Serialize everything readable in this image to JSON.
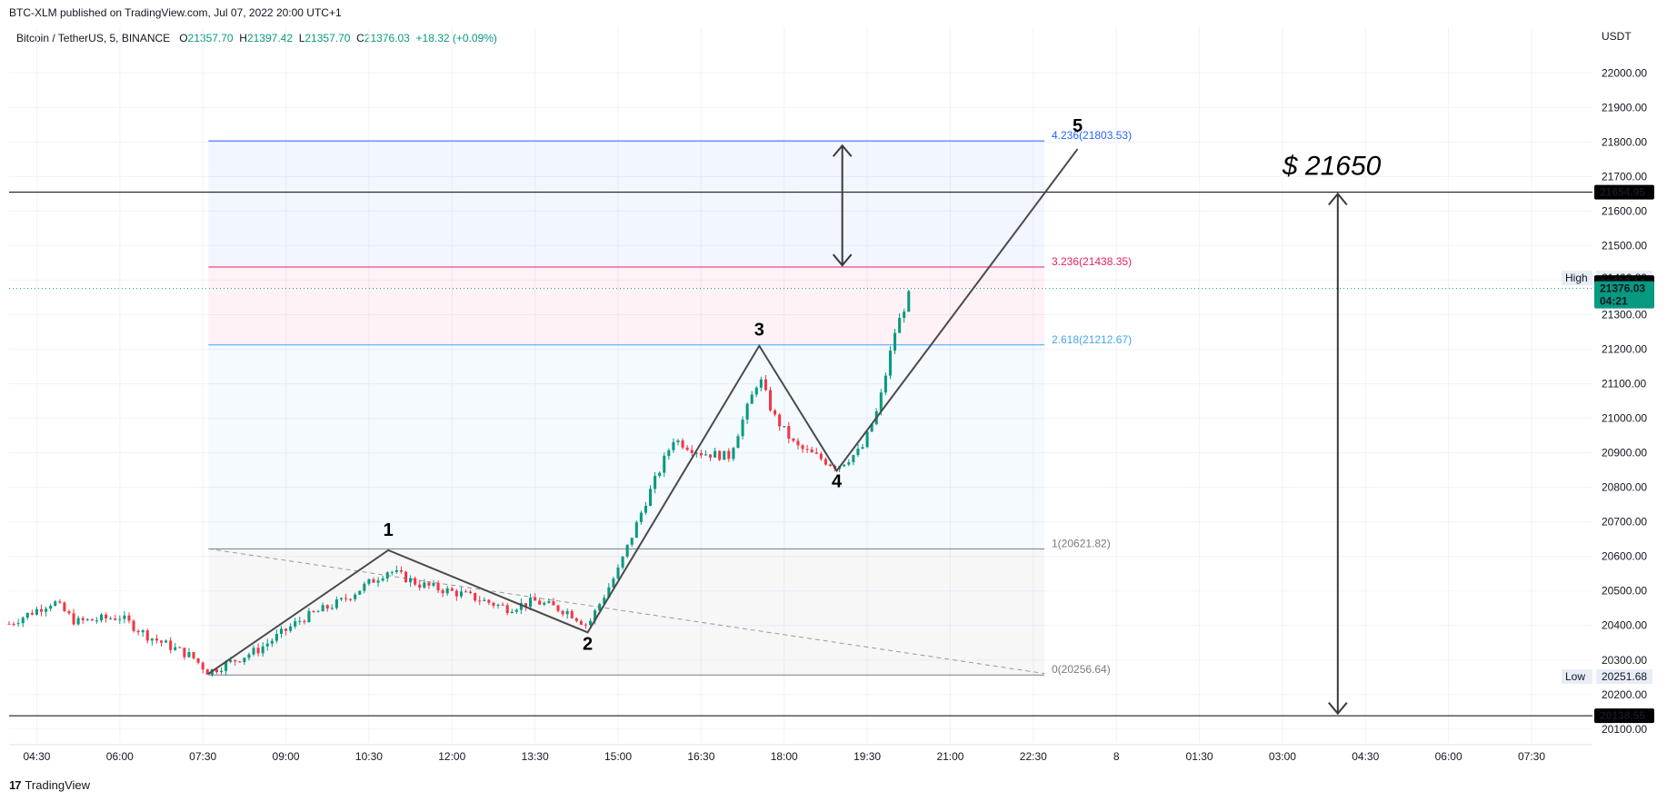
{
  "header": {
    "publish_line": "BTC-XLM published on TradingView.com, Jul 07, 2022 20:00 UTC+1",
    "symbol": "Bitcoin / TetherUS, 5, BINANCE",
    "ohlc": {
      "o_label": "O",
      "o": "21357.70",
      "h_label": "H",
      "h": "21397.42",
      "l_label": "L",
      "l": "21357.70",
      "c_label": "C",
      "c": "21376.03",
      "change": "+18.32 (+0.09%)"
    }
  },
  "footer": {
    "brand": "TradingView",
    "logo_glyph": "17"
  },
  "chart_data": {
    "type": "candlestick",
    "price_axis": {
      "unit": "USDT",
      "ticks": [
        22000,
        21900,
        21800,
        21700,
        21600,
        21500,
        21400,
        21300,
        21200,
        21100,
        21000,
        20900,
        20800,
        20700,
        20600,
        20500,
        20400,
        20300,
        20200,
        20100
      ],
      "tick_labels": [
        "22000.00",
        "21900.00",
        "21800.00",
        "21700.00",
        "21600.00",
        "21500.00",
        "21400.00",
        "21300.00",
        "21200.00",
        "21100.00",
        "21000.00",
        "20900.00",
        "20800.00",
        "20700.00",
        "20600.00",
        "20500.00",
        "20400.00",
        "20300.00",
        "20200.00",
        "20100.00"
      ],
      "range": [
        20060,
        22080
      ]
    },
    "time_axis": {
      "labels": [
        "04:30",
        "06:00",
        "07:30",
        "09:00",
        "10:30",
        "12:00",
        "13:30",
        "15:00",
        "16:30",
        "18:00",
        "19:30",
        "21:00",
        "22:30",
        "8",
        "01:30",
        "03:00",
        "04:30",
        "06:00",
        "07:30"
      ],
      "label_hours": [
        4.5,
        6,
        7.5,
        9,
        10.5,
        12,
        13.5,
        15,
        16.5,
        18,
        19.5,
        21,
        22.5,
        24,
        25.5,
        27,
        28.5,
        30,
        31.5
      ],
      "range_hours": [
        4.0,
        32.6
      ]
    },
    "price_badges": [
      {
        "value": "21654.95",
        "price": 21654.95,
        "style": "black"
      },
      {
        "value": "21393.14",
        "price": 21393.14,
        "style": "black"
      },
      {
        "value": "21376.03",
        "sub": "04:21",
        "price": 21376.03,
        "style": "green"
      },
      {
        "value": "20138.55",
        "price": 20138.55,
        "style": "black"
      }
    ],
    "high_low": [
      {
        "label": "High",
        "value": "21406.89",
        "price": 21406.89
      },
      {
        "label": "Low",
        "value": "20251.68",
        "price": 20251.68
      }
    ],
    "horizontal_lines": [
      21654.95,
      20138.55
    ],
    "fib_levels": [
      {
        "label": "4.236(21803.53)",
        "price": 21803.53,
        "color": "#2962ff"
      },
      {
        "label": "3.236(21438.35)",
        "price": 21438.35,
        "color": "#e91e63"
      },
      {
        "label": "2.618(21212.67)",
        "price": 21212.67,
        "color": "#42a5f5"
      },
      {
        "label": "1(20621.82)",
        "price": 20621.82,
        "color": "#787b86"
      },
      {
        "label": "0(20256.64)",
        "price": 20256.64,
        "color": "#787b86"
      }
    ],
    "fib_time_span": [
      7.6,
      22.7
    ],
    "wave_labels": [
      {
        "text": "1",
        "x": 10.85,
        "price": 20660
      },
      {
        "text": "2",
        "x": 14.45,
        "price": 20330
      },
      {
        "text": "3",
        "x": 17.55,
        "price": 21240
      },
      {
        "text": "4",
        "x": 18.95,
        "price": 20800
      },
      {
        "text": "5",
        "x": 23.3,
        "price": 21830
      }
    ],
    "wave_path": [
      [
        7.6,
        20260
      ],
      [
        10.85,
        20618
      ],
      [
        14.45,
        20380
      ],
      [
        17.55,
        21210
      ],
      [
        18.95,
        20848
      ],
      [
        23.3,
        21780
      ]
    ],
    "trend_line": [
      [
        7.6,
        20622
      ],
      [
        22.7,
        20261
      ]
    ],
    "target_note": "$ 21650",
    "arrows": [
      {
        "x": 19.05,
        "from": 21790,
        "to": 21443
      },
      {
        "x": 28.0,
        "from": 21650,
        "to": 20145
      }
    ],
    "candles": [
      {
        "t": 4.0,
        "o": 20405,
        "h": 20425,
        "l": 20390,
        "c": 20410
      }
    ],
    "last_price": 21376.03,
    "colors": {
      "up": "#089981",
      "down": "#f23645",
      "last_line": "#089981"
    }
  }
}
